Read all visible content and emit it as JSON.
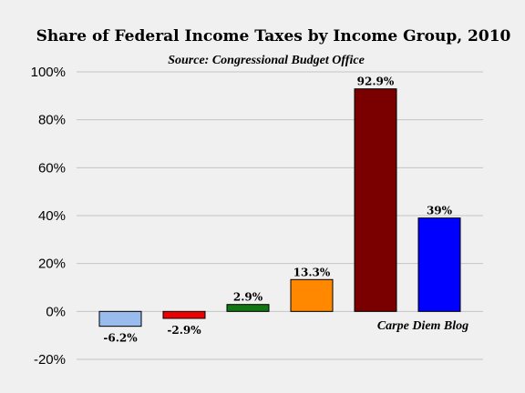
{
  "chart_data": {
    "type": "bar",
    "title": "Share of Federal Income Taxes by Income Group, 2010",
    "subtitle": "Source: Congressional Budget Office",
    "annotation": "Carpe Diem Blog",
    "xlabel": "",
    "ylabel": "",
    "categories": [
      "",
      "",
      "",
      "",
      "",
      ""
    ],
    "values": [
      -6.2,
      -2.9,
      2.9,
      13.3,
      92.9,
      39
    ],
    "value_labels": [
      "-6.2%",
      "-2.9%",
      "2.9%",
      "13.3%",
      "92.9%",
      "39%"
    ],
    "colors": [
      "#99bbee",
      "#ee0000",
      "#117711",
      "#ff8800",
      "#7a0000",
      "#0000ff"
    ],
    "ylim": [
      -20,
      100
    ],
    "yticks": [
      -20,
      0,
      20,
      40,
      60,
      80,
      100
    ],
    "ytick_labels": [
      "-20%",
      "0%",
      "20%",
      "40%",
      "60%",
      "80%",
      "100%"
    ],
    "grid": true,
    "legend": "none"
  }
}
